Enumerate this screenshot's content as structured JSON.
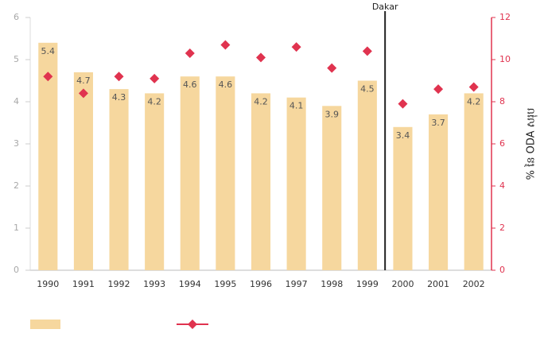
{
  "chart_data": {
    "type": "bar_line",
    "categories": [
      "1990",
      "1991",
      "1992",
      "1993",
      "1994",
      "1995",
      "1996",
      "1997",
      "1998",
      "1999",
      "2000",
      "2001",
      "2002"
    ],
    "series": [
      {
        "type": "bar",
        "color": "#f6d79e",
        "values": [
          5.4,
          4.7,
          4.3,
          4.2,
          4.6,
          4.6,
          4.2,
          4.1,
          3.9,
          4.5,
          3.4,
          3.7,
          4.2
        ]
      },
      {
        "type": "line",
        "axis": "y2",
        "color": "#e0334f",
        "values": [
          9.2,
          8.4,
          9.2,
          9.1,
          10.3,
          10.7,
          10.1,
          10.6,
          9.6,
          10.4,
          7.9,
          8.6,
          8.7
        ]
      }
    ],
    "ylim": [
      0,
      6
    ],
    "yticks": [
      0,
      1,
      2,
      3,
      4,
      5,
      6
    ],
    "y2lim": [
      0,
      12
    ],
    "y2ticks": [
      0,
      2,
      4,
      6,
      8,
      10,
      12
    ],
    "y2label": "% នៃ ODA សរុប",
    "annotation": "Dakar"
  }
}
